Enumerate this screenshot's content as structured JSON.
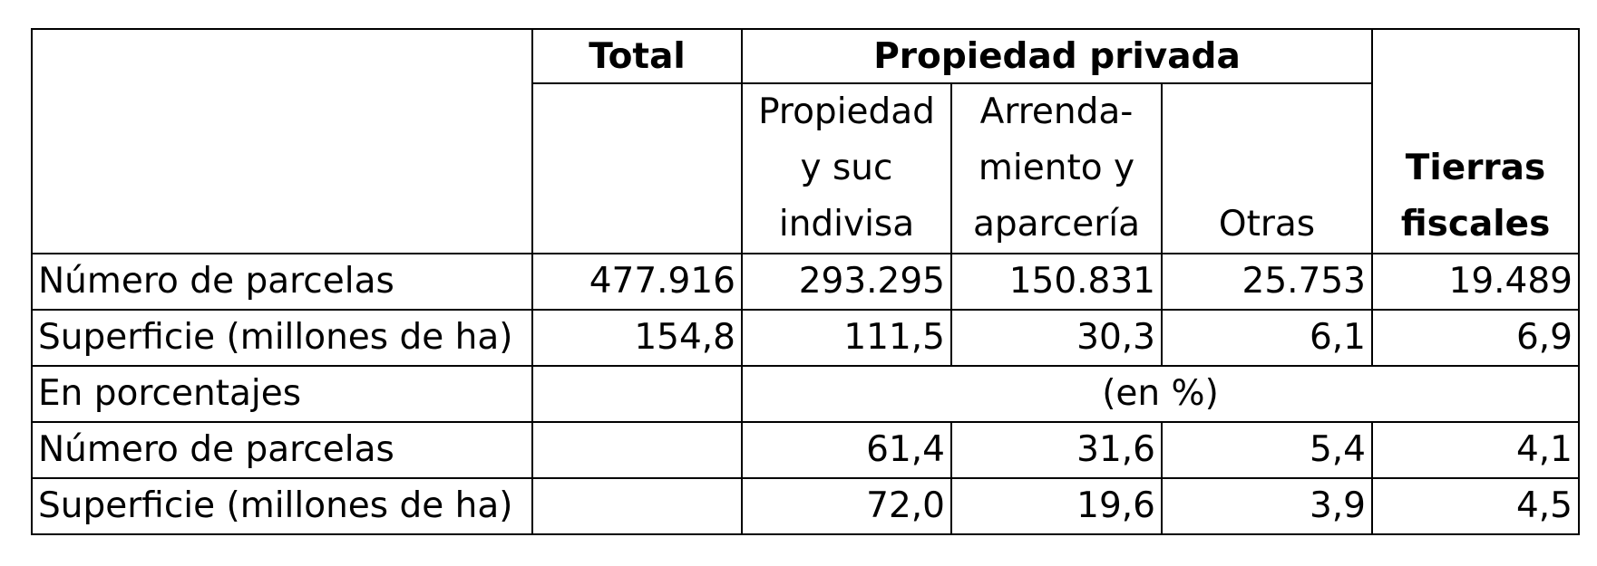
{
  "headers": {
    "total": "Total",
    "propiedad_privada": "Propiedad privada",
    "sub": [
      [
        "Propiedad",
        "y suc",
        "indivisa"
      ],
      [
        "Arrenda-",
        "miento y",
        "aparcería"
      ],
      [
        "Otras"
      ]
    ],
    "tierras_fiscales": [
      "Tierras",
      "fiscales"
    ]
  },
  "rows": [
    {
      "label": "Número de parcelas",
      "values": [
        "477.916",
        "293.295",
        "150.831",
        "25.753",
        "19.489"
      ]
    },
    {
      "label": "Superficie (millones de ha)",
      "values": [
        "154,8",
        "111,5",
        "30,3",
        "6,1",
        "6,9"
      ]
    }
  ],
  "percent_section": {
    "label": "En porcentajes",
    "unit_note": "(en %)"
  },
  "percent_rows": [
    {
      "label": "Número de parcelas",
      "values": [
        "61,4",
        "31,6",
        "5,4",
        "4,1"
      ]
    },
    {
      "label": "Superficie (millones de ha)",
      "values": [
        "72,0",
        "19,6",
        "3,9",
        "4,5"
      ]
    }
  ]
}
